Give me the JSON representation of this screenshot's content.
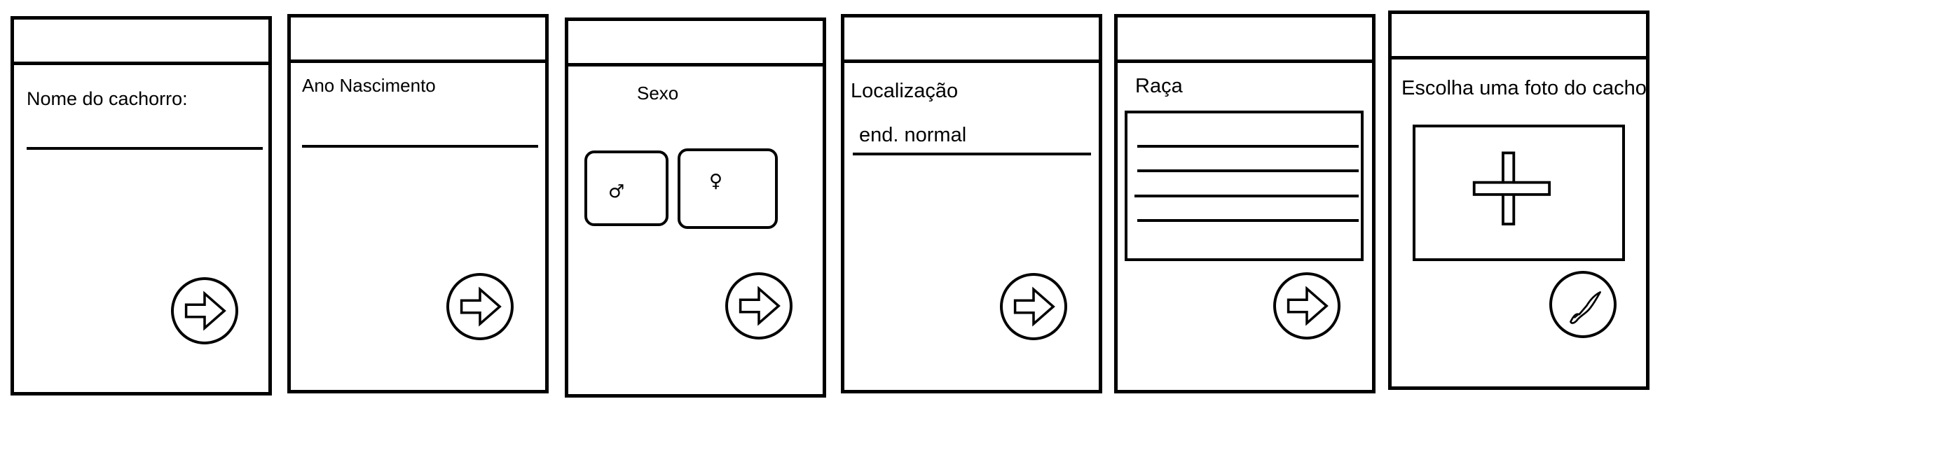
{
  "screens": [
    {
      "label": "Nome do cachorro:"
    },
    {
      "label": "Ano Nascimento"
    },
    {
      "label": "Sexo",
      "male_symbol": "♂",
      "female_symbol": "♀"
    },
    {
      "label": "Localização",
      "input_value": "end. normal"
    },
    {
      "label": "Raça"
    },
    {
      "label": "Escolha uma foto do cacho"
    }
  ],
  "icons": {
    "next": "arrow-right-icon",
    "confirm": "check-icon",
    "add_photo": "plus-icon"
  }
}
